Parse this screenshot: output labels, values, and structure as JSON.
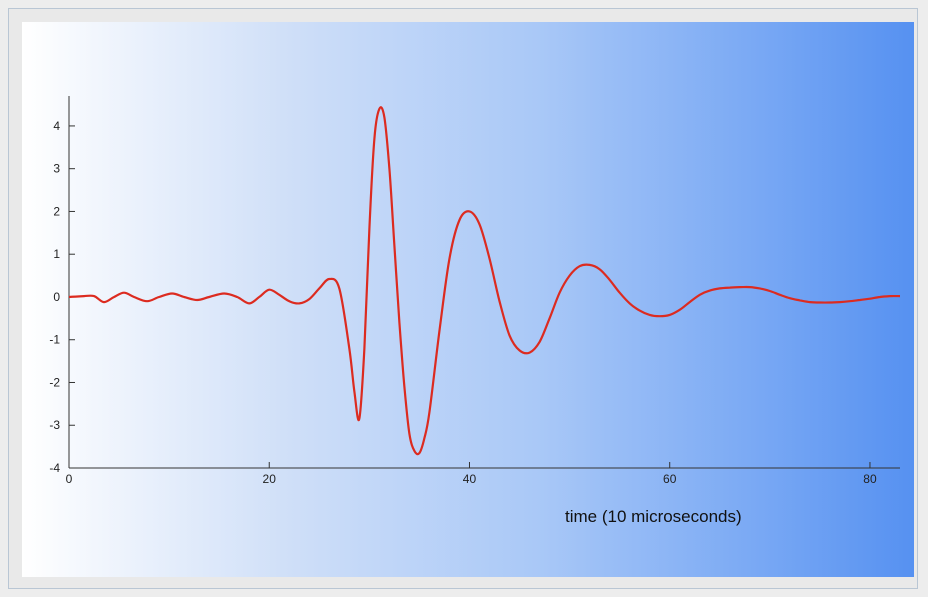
{
  "chart_data": {
    "type": "line",
    "title": "",
    "xlabel": "time (10 microseconds)",
    "ylabel": "",
    "xlim": [
      0,
      83
    ],
    "ylim": [
      -4,
      4.7
    ],
    "xticks": [
      "0",
      "20",
      "40",
      "60",
      "80"
    ],
    "yticks": [
      "4",
      "3",
      "2",
      "1",
      "0",
      "-1",
      "-2",
      "-3",
      "-4"
    ],
    "grid": false,
    "legend": "none",
    "line_color": "#dc2b20",
    "series": [
      {
        "x": [
          0,
          1.5,
          2.5,
          3.5,
          4.5,
          5.5,
          6.5,
          7.8,
          9,
          10.3,
          11.5,
          12.8,
          14,
          15.5,
          16.8,
          18,
          19,
          20,
          21,
          22,
          23,
          24,
          25,
          26,
          27,
          28,
          28.5,
          29,
          29.5,
          30,
          30.5,
          31,
          31.5,
          32,
          32.5,
          33,
          33.5,
          34,
          34.5,
          35,
          35.5,
          36,
          37,
          38,
          39,
          40,
          41,
          42,
          43,
          44,
          45,
          46,
          47,
          48,
          49,
          50,
          51,
          52,
          53,
          54,
          55,
          56,
          57,
          58,
          59,
          60,
          61,
          62,
          63,
          64,
          65,
          66,
          67,
          68,
          69,
          70,
          71,
          72,
          73,
          74,
          75,
          76,
          77,
          78,
          79,
          80,
          81,
          82,
          83
        ],
        "y": [
          0,
          0.02,
          0.02,
          -0.12,
          0,
          0.1,
          0,
          -0.1,
          0,
          0.08,
          0,
          -0.07,
          0,
          0.08,
          0,
          -0.15,
          0,
          0.17,
          0.05,
          -0.1,
          -0.15,
          -0.05,
          0.2,
          0.42,
          0.2,
          -1.2,
          -2.2,
          -2.85,
          -1.2,
          1.6,
          3.7,
          4.4,
          4.2,
          3.0,
          1.2,
          -0.6,
          -2.1,
          -3.2,
          -3.6,
          -3.65,
          -3.3,
          -2.7,
          -0.8,
          0.9,
          1.8,
          2.0,
          1.7,
          0.9,
          -0.1,
          -0.9,
          -1.25,
          -1.3,
          -1.05,
          -0.5,
          0.1,
          0.5,
          0.72,
          0.75,
          0.65,
          0.4,
          0.1,
          -0.15,
          -0.32,
          -0.42,
          -0.45,
          -0.42,
          -0.3,
          -0.12,
          0.05,
          0.15,
          0.2,
          0.22,
          0.23,
          0.23,
          0.2,
          0.14,
          0.05,
          -0.03,
          -0.08,
          -0.12,
          -0.13,
          -0.13,
          -0.12,
          -0.1,
          -0.07,
          -0.04,
          0,
          0.02,
          0.02
        ]
      }
    ]
  }
}
